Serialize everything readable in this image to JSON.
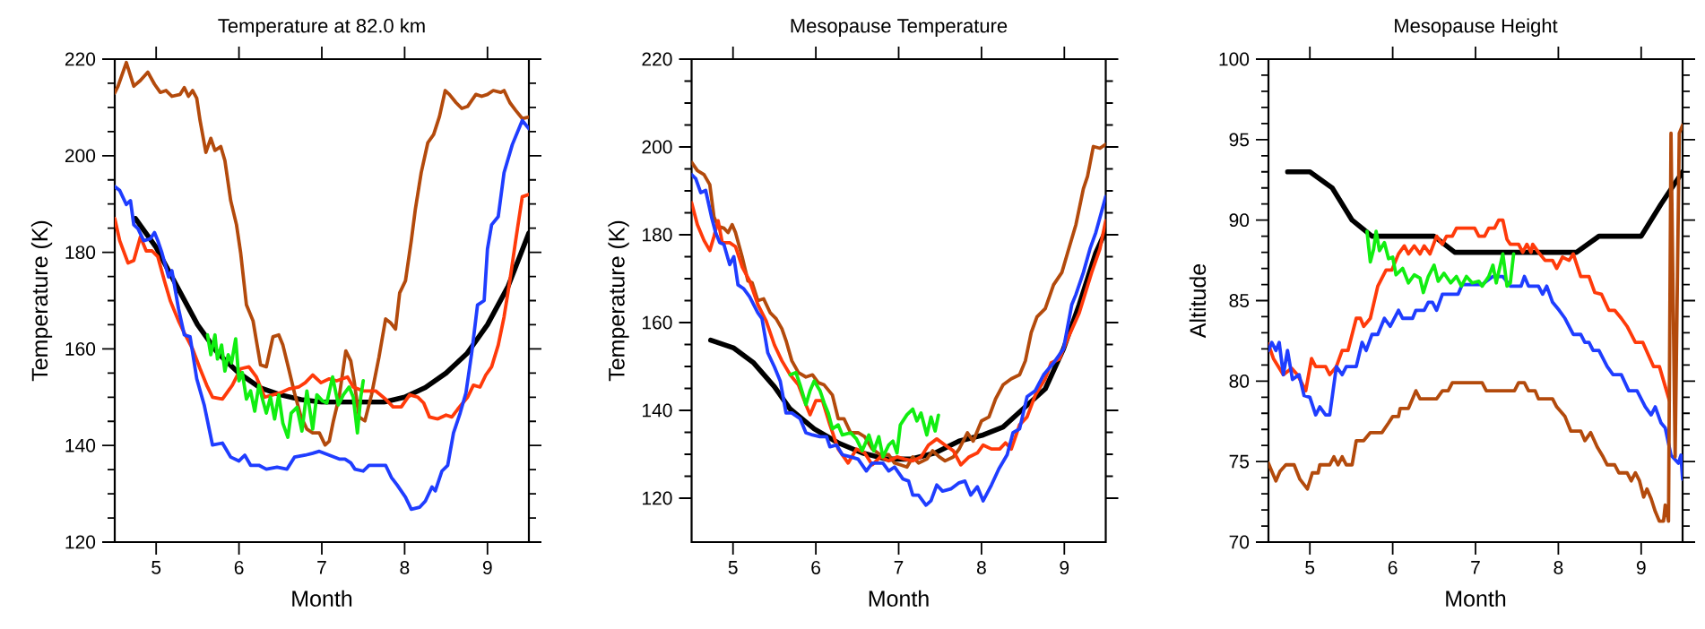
{
  "chart_data": [
    {
      "type": "line",
      "title": "Temperature at 82.0 km",
      "xlabel": "Month",
      "ylabel": "Temperature (K)",
      "xlim": [
        4.5,
        9.5
      ],
      "ylim": [
        120,
        220
      ],
      "xticks": [
        5,
        6,
        7,
        8,
        9
      ],
      "yticks": [
        120,
        140,
        160,
        180,
        200,
        220
      ],
      "series": [
        {
          "color": "#000000",
          "x": [
            4.75,
            5,
            5.25,
            5.5,
            5.75,
            6,
            6.25,
            6.5,
            6.75,
            7,
            7.5,
            7.75,
            8,
            8.25,
            8.5,
            8.75,
            9,
            9.25,
            9.5
          ],
          "values": [
            187,
            181,
            173,
            165,
            159,
            155,
            152,
            150.5,
            149.5,
            149,
            149,
            149,
            150,
            152,
            155,
            159,
            165,
            173,
            184
          ]
        },
        {
          "color": "#b34a0c",
          "x": [
            4.5,
            4.54,
            4.64,
            4.73,
            4.81,
            4.9,
            4.98,
            5.05,
            5.12,
            5.19,
            5.29,
            5.34,
            5.39,
            5.44,
            5.49,
            5.53,
            5.6,
            5.66,
            5.71,
            5.78,
            5.83,
            5.9,
            5.97,
            6.02,
            6.09,
            6.17,
            6.21,
            6.26,
            6.33,
            6.41,
            6.48,
            6.53,
            6.6,
            6.67,
            6.75,
            6.82,
            6.89,
            6.97,
            7.04,
            7.09,
            7.14,
            7.21,
            7.29,
            7.35,
            7.39,
            7.45,
            7.52,
            7.6,
            7.69,
            7.77,
            7.83,
            7.89,
            7.94,
            8.01,
            8.08,
            8.13,
            8.2,
            8.28,
            8.35,
            8.42,
            8.49,
            8.54,
            8.62,
            8.69,
            8.76,
            8.86,
            8.93,
            9,
            9.07,
            9.16,
            9.2,
            9.27,
            9.34,
            9.42,
            9.5
          ],
          "values": [
            213,
            214.4,
            219.3,
            214.4,
            215.6,
            217.3,
            214.8,
            213.1,
            213.5,
            212.3,
            212.7,
            214.1,
            212.3,
            213.5,
            211.9,
            207.3,
            200.7,
            203.6,
            201.1,
            201.9,
            199,
            190.7,
            185.7,
            179.9,
            169.1,
            165.8,
            161.7,
            156.7,
            156.3,
            162.5,
            162.9,
            160.8,
            155.9,
            150.9,
            145.9,
            143.4,
            142.6,
            142.6,
            140.1,
            140.9,
            145.1,
            150.1,
            159.6,
            157.5,
            153.4,
            145.9,
            145.1,
            150.5,
            158.3,
            166.2,
            165.4,
            164.1,
            171.6,
            174.1,
            182.4,
            189,
            196.5,
            202.7,
            204.4,
            208.1,
            213.5,
            212.7,
            211,
            209.8,
            210.2,
            212.7,
            212.3,
            212.7,
            213.5,
            213.1,
            213.5,
            211,
            209.4,
            207.7,
            208
          ]
        },
        {
          "color": "#ff3a0a",
          "x": [
            4.5,
            4.56,
            4.66,
            4.73,
            4.81,
            4.88,
            4.95,
            5.02,
            5.1,
            5.17,
            5.27,
            5.34,
            5.44,
            5.53,
            5.61,
            5.68,
            5.8,
            5.92,
            6.02,
            6.12,
            6.21,
            6.31,
            6.41,
            6.5,
            6.6,
            6.72,
            6.8,
            6.89,
            6.99,
            7.09,
            7.18,
            7.31,
            7.38,
            7.5,
            7.65,
            7.77,
            7.86,
            7.96,
            8.06,
            8.16,
            8.23,
            8.3,
            8.4,
            8.5,
            8.57,
            8.64,
            8.76,
            8.83,
            8.91,
            8.98,
            9.05,
            9.13,
            9.2,
            9.27,
            9.34,
            9.42,
            9.5
          ],
          "values": [
            187,
            182.4,
            177.8,
            178.3,
            183.2,
            180.3,
            180.3,
            179.1,
            174.1,
            170,
            165.8,
            163.3,
            160,
            155.9,
            152.5,
            150,
            149.6,
            152.5,
            155.9,
            156.3,
            154.2,
            150,
            150.5,
            150.9,
            151.7,
            152.1,
            153,
            154.6,
            153,
            153.8,
            153.4,
            154.2,
            152.1,
            151.3,
            151.3,
            149.6,
            148,
            148,
            150.5,
            150,
            148.8,
            145.9,
            145.5,
            146.3,
            145.9,
            147.5,
            150,
            152.5,
            152.1,
            154.6,
            156.3,
            160.8,
            166.6,
            174.1,
            182.4,
            191.5,
            192
          ]
        },
        {
          "color": "#1f3dff",
          "x": [
            4.5,
            4.56,
            4.64,
            4.69,
            4.73,
            4.78,
            4.85,
            4.93,
            4.98,
            5.02,
            5.07,
            5.15,
            5.19,
            5.27,
            5.34,
            5.41,
            5.49,
            5.58,
            5.68,
            5.8,
            5.9,
            6,
            6.07,
            6.14,
            6.24,
            6.33,
            6.46,
            6.58,
            6.67,
            6.8,
            6.89,
            6.97,
            7.09,
            7.21,
            7.28,
            7.35,
            7.4,
            7.5,
            7.57,
            7.67,
            7.77,
            7.84,
            7.91,
            8.01,
            8.08,
            8.18,
            8.25,
            8.33,
            8.37,
            8.45,
            8.52,
            8.59,
            8.67,
            8.74,
            8.81,
            8.88,
            8.96,
            9,
            9.05,
            9.13,
            9.2,
            9.3,
            9.42,
            9.5
          ],
          "values": [
            193.6,
            192.8,
            189.9,
            190.7,
            185.7,
            184.9,
            182.4,
            182.8,
            184.1,
            182.4,
            179.9,
            174.9,
            176.2,
            168.3,
            162.9,
            162.5,
            153.8,
            148.4,
            140.1,
            140.5,
            137.6,
            136.8,
            138,
            135.9,
            135.9,
            135.1,
            135.5,
            135.1,
            137.6,
            138,
            138.4,
            138.8,
            138,
            137.2,
            137.2,
            136.4,
            135.1,
            134.7,
            135.9,
            135.9,
            135.9,
            133.4,
            131.8,
            129.3,
            126.8,
            127.2,
            128.5,
            131.4,
            130.6,
            134.7,
            135.9,
            142.6,
            146.7,
            150.9,
            159.2,
            169.1,
            170,
            180.7,
            185.7,
            187.4,
            196.5,
            202.3,
            207.3,
            205.6
          ]
        },
        {
          "color": "#11ee11",
          "x": [
            5.62,
            5.66,
            5.71,
            5.74,
            5.79,
            5.83,
            5.87,
            5.91,
            5.96,
            6,
            6.04,
            6.09,
            6.14,
            6.19,
            6.24,
            6.29,
            6.33,
            6.38,
            6.43,
            6.48,
            6.53,
            6.59,
            6.63,
            6.7,
            6.76,
            6.82,
            6.89,
            6.94,
            7.01,
            7.06,
            7.13,
            7.2,
            7.26,
            7.33,
            7.38,
            7.43,
            7.47,
            7.5
          ],
          "values": [
            162.9,
            158.8,
            162.9,
            157.9,
            160.8,
            155.4,
            158.8,
            157.1,
            162.1,
            153.4,
            155.1,
            149.6,
            151.3,
            147.1,
            152.5,
            149.2,
            146.7,
            150,
            145.5,
            150.5,
            144.6,
            141.7,
            146.7,
            147.9,
            143,
            151.3,
            143.4,
            150.5,
            149.2,
            148.8,
            154.2,
            148.4,
            150.5,
            152.1,
            150,
            142.6,
            150,
            153.4
          ]
        }
      ]
    },
    {
      "type": "line",
      "title": "Mesopause Temperature",
      "xlabel": "Month",
      "ylabel": "Temperature (K)",
      "xlim": [
        4.5,
        9.5
      ],
      "ylim": [
        110,
        220
      ],
      "xticks": [
        5,
        6,
        7,
        8,
        9
      ],
      "yticks": [
        120,
        140,
        160,
        180,
        200,
        220
      ],
      "series": [
        {
          "color": "#000000",
          "x": [
            4.73,
            5.01,
            5.25,
            5.5,
            5.69,
            5.98,
            6.27,
            6.56,
            6.85,
            7.15,
            7.44,
            7.73,
            8.02,
            8.26,
            8.5,
            8.77,
            8.99,
            9.18,
            9.38,
            9.5
          ],
          "values": [
            156,
            154.2,
            150.8,
            145.4,
            140.3,
            135.8,
            132.6,
            130.3,
            128.9,
            128.9,
            130.3,
            133,
            134.4,
            136.2,
            140.3,
            144.9,
            154,
            164.1,
            175.9,
            180.9
          ]
        },
        {
          "color": "#b34a0c",
          "x": [
            4.5,
            4.57,
            4.65,
            4.72,
            4.77,
            4.82,
            4.89,
            4.94,
            4.99,
            5.03,
            5.11,
            5.18,
            5.23,
            5.3,
            5.37,
            5.45,
            5.52,
            5.59,
            5.64,
            5.71,
            5.79,
            5.88,
            5.96,
            6.03,
            6.1,
            6.2,
            6.27,
            6.34,
            6.42,
            6.51,
            6.59,
            6.68,
            6.78,
            6.88,
            6.95,
            7.02,
            7.1,
            7.17,
            7.24,
            7.34,
            7.41,
            7.49,
            7.56,
            7.66,
            7.73,
            7.83,
            7.9,
            8,
            8.09,
            8.17,
            8.26,
            8.36,
            8.46,
            8.53,
            8.6,
            8.67,
            8.77,
            8.87,
            8.97,
            9.04,
            9.14,
            9.23,
            9.28,
            9.35,
            9.43,
            9.5
          ],
          "values": [
            196.5,
            194.6,
            193.7,
            191.4,
            184.1,
            181.9,
            181.5,
            180.5,
            182.3,
            180.5,
            175,
            169.5,
            169.1,
            165,
            165.4,
            162.2,
            160.9,
            158.6,
            155.9,
            151.3,
            148.6,
            147.6,
            148.1,
            146.3,
            145.8,
            143.5,
            138.1,
            138.1,
            134.9,
            134.9,
            134,
            131.2,
            129.9,
            129.9,
            128,
            127.6,
            127.1,
            129.4,
            128,
            128.9,
            130.8,
            129.4,
            128.5,
            129.4,
            131.2,
            134.9,
            133,
            137.6,
            138.5,
            142.6,
            145.8,
            147.2,
            148.1,
            151.3,
            157.7,
            161.3,
            163.2,
            168.6,
            171.4,
            175.9,
            182.3,
            190.5,
            193.3,
            200.1,
            199.7,
            200.6
          ]
        },
        {
          "color": "#ff3a0a",
          "x": [
            4.5,
            4.57,
            4.65,
            4.72,
            4.77,
            4.82,
            4.87,
            4.96,
            5.03,
            5.11,
            5.2,
            5.3,
            5.4,
            5.5,
            5.59,
            5.69,
            5.79,
            5.88,
            5.93,
            6,
            6.08,
            6.17,
            6.27,
            6.39,
            6.49,
            6.59,
            6.68,
            6.78,
            6.88,
            6.98,
            7.07,
            7.17,
            7.27,
            7.36,
            7.46,
            7.56,
            7.66,
            7.75,
            7.85,
            7.95,
            8.02,
            8.12,
            8.22,
            8.29,
            8.36,
            8.46,
            8.55,
            8.65,
            8.77,
            8.84,
            8.94,
            9.04,
            9.18,
            9.33,
            9.43,
            9.5
          ],
          "values": [
            187.3,
            182.3,
            178.7,
            176.4,
            179.6,
            183.2,
            178.2,
            178.2,
            177.3,
            172.7,
            169.5,
            164.1,
            160.4,
            154.9,
            151.3,
            148.1,
            145.8,
            141.3,
            139,
            142.2,
            142.2,
            136.7,
            131.2,
            128,
            131.2,
            130.3,
            127.6,
            129.4,
            128.5,
            129.4,
            128.9,
            128.5,
            129.4,
            132.1,
            133.5,
            132.1,
            130.8,
            127.6,
            129.4,
            130.3,
            132.1,
            131.2,
            131.2,
            132.6,
            131.2,
            136.7,
            138.5,
            143.5,
            147.2,
            150.8,
            151.7,
            156.3,
            162.2,
            171.4,
            176.8,
            183.2
          ]
        },
        {
          "color": "#1f3dff",
          "x": [
            4.5,
            4.55,
            4.61,
            4.67,
            4.74,
            4.79,
            4.84,
            4.89,
            4.96,
            5.01,
            5.06,
            5.13,
            5.2,
            5.3,
            5.35,
            5.42,
            5.5,
            5.57,
            5.64,
            5.71,
            5.81,
            5.88,
            5.96,
            6.05,
            6.13,
            6.17,
            6.25,
            6.32,
            6.42,
            6.51,
            6.61,
            6.68,
            6.81,
            6.88,
            6.95,
            7.05,
            7.12,
            7.17,
            7.24,
            7.33,
            7.39,
            7.46,
            7.53,
            7.63,
            7.73,
            7.8,
            7.87,
            7.95,
            8.02,
            8.12,
            8.21,
            8.31,
            8.38,
            8.46,
            8.55,
            8.65,
            8.75,
            8.87,
            8.99,
            9.09,
            9.14,
            9.23,
            9.31,
            9.38,
            9.5
          ],
          "values": [
            193.7,
            192.8,
            189.6,
            190.1,
            184.1,
            180.5,
            178.2,
            177.8,
            173.2,
            175,
            168.6,
            167.7,
            165.9,
            162.2,
            160.9,
            153.1,
            149.9,
            146.7,
            139.4,
            139.4,
            138.1,
            134.9,
            134.4,
            134,
            134,
            131.7,
            132.1,
            129.9,
            129.4,
            128.9,
            126.2,
            128,
            128,
            126.2,
            127.1,
            124.4,
            123.9,
            120.7,
            120.7,
            118.4,
            119.4,
            123,
            121.6,
            122.1,
            123.5,
            123.9,
            120.7,
            122.6,
            119.4,
            123,
            126.7,
            129.9,
            134.9,
            135.8,
            143.1,
            144.5,
            148.1,
            150.8,
            154,
            164.1,
            166.4,
            171.4,
            176.8,
            180.5,
            188.7
          ]
        },
        {
          "color": "#11ee11",
          "x": [
            5.69,
            5.76,
            5.81,
            5.88,
            5.93,
            5.98,
            6.05,
            6.1,
            6.15,
            6.2,
            6.27,
            6.32,
            6.42,
            6.49,
            6.56,
            6.64,
            6.7,
            6.76,
            6.81,
            6.88,
            6.93,
            6.98,
            7.02,
            7.1,
            7.17,
            7.22,
            7.27,
            7.34,
            7.39,
            7.44,
            7.48
          ],
          "values": [
            148.1,
            148.6,
            145.8,
            141.3,
            144.5,
            146.7,
            144.5,
            141.7,
            139.4,
            135.8,
            136.7,
            134.4,
            134.9,
            133.5,
            130.8,
            134.4,
            130.8,
            134,
            129.4,
            132.1,
            133,
            130.3,
            136.7,
            139,
            140.3,
            137.6,
            139.4,
            134.4,
            138.5,
            135.3,
            138.9
          ]
        }
      ]
    },
    {
      "type": "line",
      "title": "Mesopause Height",
      "xlabel": "Month",
      "ylabel": "Altitude",
      "xlim": [
        4.5,
        9.5
      ],
      "ylim": [
        70,
        100
      ],
      "xticks": [
        5,
        6,
        7,
        8,
        9
      ],
      "yticks": [
        70,
        75,
        80,
        85,
        90,
        95,
        100
      ],
      "series": [
        {
          "color": "#000000",
          "x": [
            4.73,
            5,
            5.27,
            5.51,
            5.75,
            6.5,
            6.75,
            8.22,
            8.49,
            9,
            9.24,
            9.5
          ],
          "values": [
            93,
            93,
            92,
            90,
            89,
            89,
            88,
            88,
            89,
            89,
            91,
            93
          ]
        },
        {
          "color": "#ff3a0a",
          "x": [
            4.5,
            4.56,
            4.68,
            4.78,
            4.85,
            4.95,
            5.02,
            5.07,
            5.19,
            5.24,
            5.32,
            5.39,
            5.46,
            5.51,
            5.56,
            5.61,
            5.65,
            5.73,
            5.82,
            5.92,
            5.99,
            6.07,
            6.14,
            6.19,
            6.26,
            6.33,
            6.38,
            6.45,
            6.53,
            6.6,
            6.65,
            6.72,
            6.77,
            6.99,
            7.04,
            7.11,
            7.16,
            7.23,
            7.28,
            7.33,
            7.38,
            7.42,
            7.52,
            7.57,
            7.62,
            7.67,
            7.69,
            7.76,
            7.84,
            7.93,
            7.98,
            8.05,
            8.13,
            8.18,
            8.27,
            8.37,
            8.44,
            8.52,
            8.61,
            8.68,
            8.76,
            8.83,
            8.93,
            9.02,
            9.15,
            9.22,
            9.34
          ],
          "values": [
            82.3,
            81.4,
            80.4,
            80.8,
            80.4,
            79.4,
            81.4,
            80.9,
            80.9,
            80.4,
            80.9,
            81.9,
            81.9,
            82.9,
            83.9,
            83.9,
            83.4,
            83.9,
            85.9,
            86.9,
            86.9,
            87.9,
            88.4,
            87.9,
            88.4,
            87.9,
            88.4,
            87.9,
            89,
            88.5,
            89,
            89,
            89.5,
            89.5,
            89,
            89,
            89.5,
            89.5,
            90,
            90,
            88.8,
            88.5,
            88.5,
            88,
            88.5,
            88,
            88.5,
            88,
            87.5,
            87.5,
            87,
            87.7,
            87.5,
            87.9,
            86.5,
            86.5,
            85.5,
            85.4,
            84.4,
            84.4,
            83.9,
            83.4,
            82.4,
            82.4,
            80.9,
            80.9,
            78.8
          ]
        },
        {
          "color": "#1f3dff",
          "x": [
            4.5,
            4.54,
            4.59,
            4.63,
            4.68,
            4.73,
            4.79,
            4.87,
            4.93,
            5,
            5.07,
            5.12,
            5.19,
            5.24,
            5.32,
            5.39,
            5.44,
            5.56,
            5.63,
            5.68,
            5.75,
            5.82,
            5.9,
            5.97,
            6.07,
            6.12,
            6.24,
            6.28,
            6.38,
            6.43,
            6.48,
            6.53,
            6.6,
            6.65,
            6.79,
            6.84,
            7.08,
            7.21,
            7.33,
            7.42,
            7.55,
            7.59,
            7.64,
            7.76,
            7.81,
            7.86,
            7.93,
            8.01,
            8.08,
            8.18,
            8.27,
            8.32,
            8.37,
            8.42,
            8.49,
            8.59,
            8.66,
            8.76,
            8.85,
            8.95,
            9.05,
            9.12,
            9.17,
            9.24,
            9.29,
            9.36,
            9.45,
            9.48,
            9.5
          ],
          "values": [
            81.9,
            82.4,
            81.9,
            82.4,
            80.4,
            81.9,
            80.1,
            80.4,
            79.1,
            79,
            77.9,
            78.4,
            77.9,
            77.9,
            80.9,
            80.4,
            80.9,
            80.9,
            82.4,
            81.9,
            82.9,
            82.9,
            83.9,
            83.4,
            84.4,
            83.9,
            83.9,
            84.4,
            84.4,
            84.9,
            84.9,
            84.4,
            85.4,
            85.4,
            85.4,
            86,
            86,
            86.5,
            86.5,
            85.9,
            85.9,
            86.5,
            85.9,
            85.9,
            85.4,
            85.9,
            84.9,
            84.4,
            83.9,
            82.9,
            82.9,
            82.4,
            82.4,
            81.9,
            81.9,
            80.9,
            80.4,
            80.4,
            79.4,
            79.4,
            78.4,
            77.9,
            78.4,
            77.4,
            77.1,
            75.4,
            74.9,
            75.4,
            73.9
          ]
        },
        {
          "color": "#b34a0c",
          "x": [
            4.5,
            4.54,
            4.59,
            4.64,
            4.71,
            4.81,
            4.88,
            4.97,
            5.03,
            5.1,
            5.12,
            5.24,
            5.29,
            5.34,
            5.39,
            5.44,
            5.51,
            5.56,
            5.65,
            5.73,
            5.87,
            5.95,
            6,
            6.07,
            6.09,
            6.19,
            6.24,
            6.28,
            6.33,
            6.53,
            6.6,
            6.67,
            6.72,
            7.08,
            7.13,
            7.47,
            7.52,
            7.59,
            7.64,
            7.72,
            7.76,
            7.93,
            7.98,
            8.08,
            8.15,
            8.27,
            8.32,
            8.39,
            8.47,
            8.54,
            8.59,
            8.68,
            8.73,
            8.83,
            8.88,
            8.93,
            8.98,
            9.03,
            9.07,
            9.12,
            9.17,
            9.22,
            9.27,
            9.29,
            9.33,
            9.36,
            9.41,
            9.46,
            9.5
          ],
          "values": [
            74.9,
            74.4,
            73.8,
            74.4,
            74.8,
            74.8,
            73.9,
            73.3,
            74.3,
            74.3,
            74.8,
            74.8,
            75.3,
            74.8,
            75.3,
            74.8,
            74.8,
            76.3,
            76.3,
            76.8,
            76.8,
            77.4,
            77.8,
            77.8,
            78.3,
            78.3,
            78.9,
            79.4,
            78.9,
            78.9,
            79.4,
            79.4,
            79.9,
            79.9,
            79.4,
            79.4,
            79.9,
            79.9,
            79.4,
            79.4,
            78.9,
            78.9,
            78.4,
            77.8,
            76.9,
            76.9,
            76.3,
            76.8,
            75.9,
            75.3,
            74.8,
            74.8,
            74.3,
            74.3,
            73.8,
            74.3,
            73.8,
            72.8,
            73.3,
            72.7,
            71.9,
            71.3,
            71.3,
            72.3,
            71.3,
            95.4,
            75.3,
            95.4,
            95.9
          ]
        },
        {
          "color": "#11ee11",
          "x": [
            5.69,
            5.73,
            5.77,
            5.8,
            5.84,
            5.9,
            5.95,
            6,
            6.04,
            6.12,
            6.19,
            6.26,
            6.33,
            6.37,
            6.43,
            6.5,
            6.55,
            6.62,
            6.7,
            6.77,
            6.83,
            6.89,
            6.96,
            7.04,
            7.08,
            7.16,
            7.21,
            7.25,
            7.33,
            7.38,
            7.42,
            7.46
          ],
          "values": [
            89.3,
            87.4,
            88.2,
            89.3,
            88.1,
            88.6,
            87.6,
            87.7,
            86.6,
            87,
            86.1,
            86.6,
            86.4,
            85.5,
            86.5,
            87.2,
            86.2,
            86.7,
            86.1,
            86.5,
            85.9,
            86.5,
            86.1,
            86.2,
            85.9,
            86.5,
            87.2,
            86.1,
            87.9,
            85.9,
            86.1,
            87.9
          ]
        }
      ]
    }
  ]
}
